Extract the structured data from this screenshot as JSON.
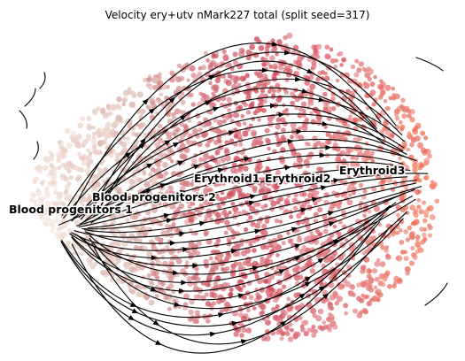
{
  "chart_data": {
    "type": "scatter",
    "title": "Velocity ery+utv nMark227 total (split seed=317)",
    "xlabel": "",
    "ylabel": "",
    "grid": false,
    "axes_visible": false,
    "overlay": "velocity-streamlines",
    "clusters": [
      {
        "name": "Blood progenitors 1",
        "color": "#f9e6dc",
        "x": 0.1,
        "y": 0.55
      },
      {
        "name": "Blood progenitors 2",
        "color": "#d9b4a8",
        "x": 0.33,
        "y": 0.47
      },
      {
        "name": "Erythroid1",
        "color": "#c9404e",
        "x": 0.5,
        "y": 0.42
      },
      {
        "name": "Erythroid2",
        "color": "#d9565e",
        "x": 0.65,
        "y": 0.42
      },
      {
        "name": "Erythroid3",
        "color": "#ef6a4e",
        "x": 0.86,
        "y": 0.4
      }
    ],
    "colors": {
      "background": "#ffffff",
      "streamline": "#000000",
      "blood_progenitors_1": "#f9e6dc",
      "blood_progenitors_2": "#d9b4a8",
      "erythroid1": "#c9404e",
      "erythroid2": "#d9565e",
      "erythroid3": "#ef6a4e"
    }
  }
}
